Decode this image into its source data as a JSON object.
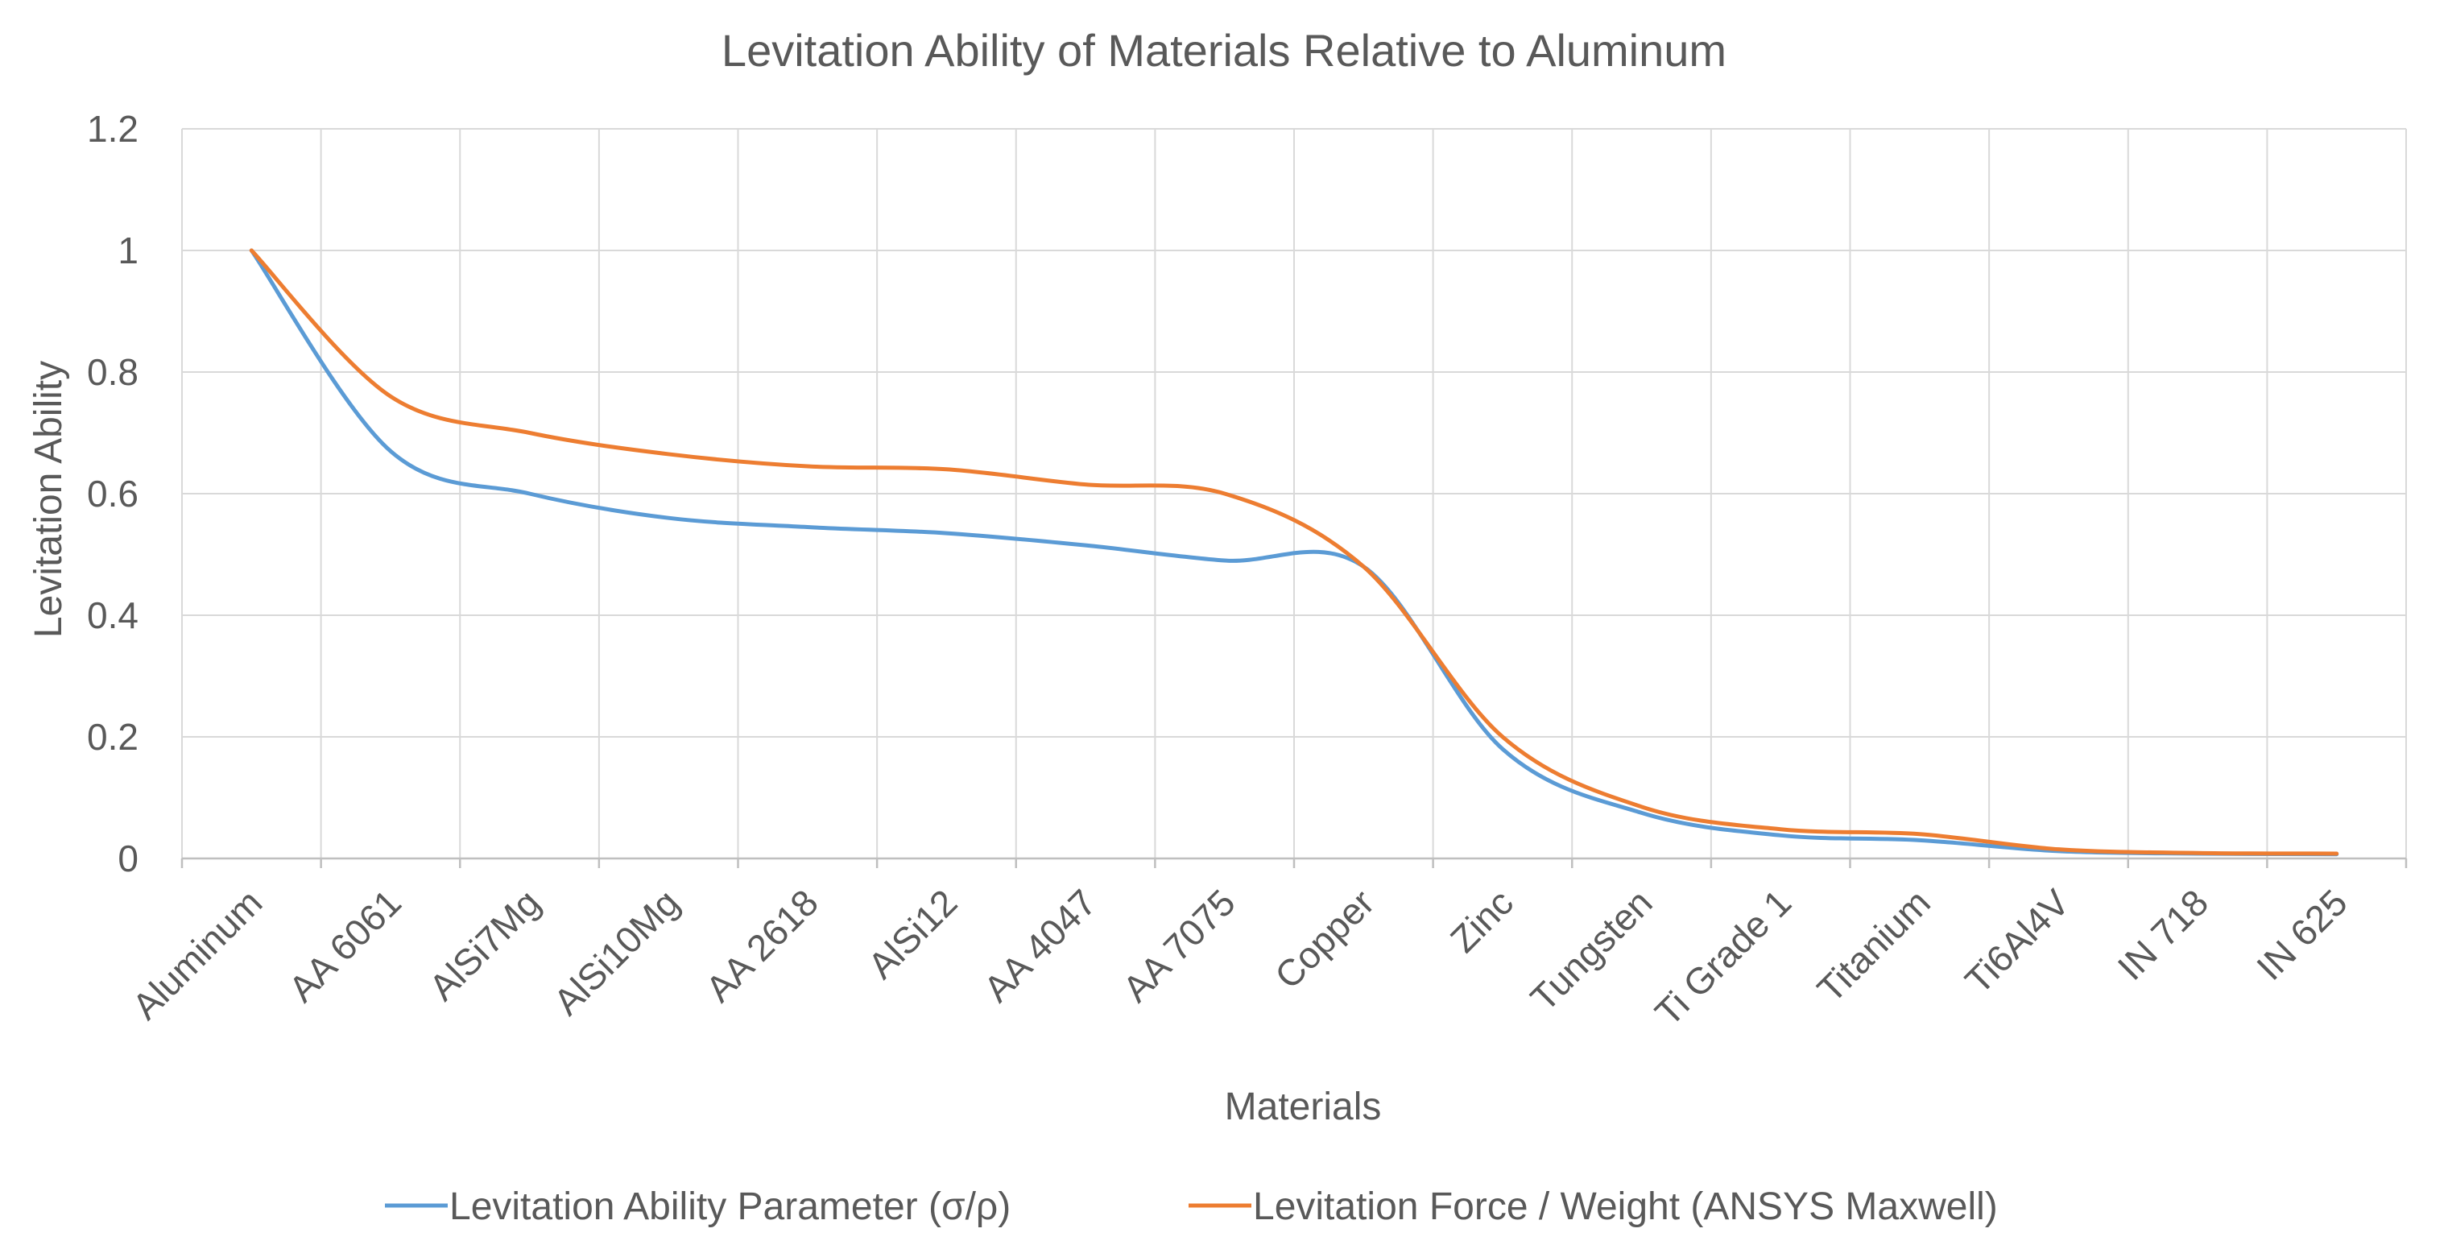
{
  "chart_data": {
    "type": "line",
    "title": "Levitation Ability of Materials Relative to Aluminum",
    "xlabel": "Materials",
    "ylabel": "Levitation Ability",
    "categories": [
      "Aluminum",
      "AA 6061",
      "AlSi7Mg",
      "AlSi10Mg",
      "AA 2618",
      "AlSi12",
      "AA 4047",
      "AA 7075",
      "Copper",
      "Zinc",
      "Tungsten",
      "Ti Grade 1",
      "Titanium",
      "Ti6Al4V",
      "IN 718",
      "IN 625"
    ],
    "ylim": [
      0,
      1.2
    ],
    "yticks": [
      "0",
      "0.2",
      "0.4",
      "0.6",
      "0.8",
      "1",
      "1.2"
    ],
    "grid": true,
    "smooth": true,
    "legend_position": "bottom",
    "series": [
      {
        "name": "Levitation Ability Parameter (σ/ρ)",
        "color": "#5B9BD5",
        "values": [
          1.0,
          0.67,
          0.6,
          0.56,
          0.545,
          0.535,
          0.515,
          0.49,
          0.48,
          0.18,
          0.075,
          0.038,
          0.03,
          0.012,
          0.008,
          0.007
        ]
      },
      {
        "name": "Levitation Force / Weight (ANSYS Maxwell)",
        "color": "#ED7D31",
        "values": [
          1.0,
          0.76,
          0.7,
          0.665,
          0.645,
          0.64,
          0.615,
          0.6,
          0.48,
          0.2,
          0.085,
          0.048,
          0.04,
          0.015,
          0.009,
          0.008
        ]
      }
    ]
  }
}
